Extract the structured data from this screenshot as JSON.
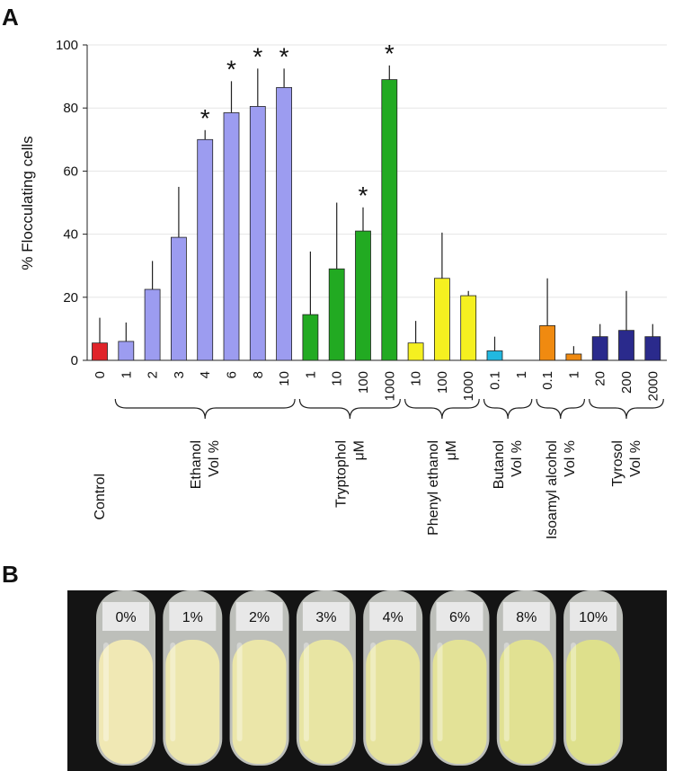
{
  "chart_data": {
    "type": "bar",
    "panel_label": "A",
    "ylabel": "% Flocculating cells",
    "ylim": [
      0,
      100
    ],
    "yticks": [
      0,
      20,
      40,
      60,
      80,
      100
    ],
    "grid": true,
    "groups": [
      {
        "name": "Control",
        "color": "#e0242a",
        "categories": [
          "0"
        ],
        "values": [
          5.5
        ],
        "errors": [
          8
        ],
        "annotations": [
          null
        ]
      },
      {
        "name": "Ethanol",
        "unit": "Vol %",
        "color": "#9c9cf0",
        "categories": [
          "1",
          "2",
          "3",
          "4",
          "6",
          "8",
          "10"
        ],
        "values": [
          6,
          22.5,
          39,
          70,
          78.5,
          80.5,
          86.5
        ],
        "errors": [
          6,
          9,
          16,
          3,
          10,
          12,
          6
        ],
        "annotations": [
          null,
          null,
          null,
          "*",
          "*",
          "*",
          "*"
        ]
      },
      {
        "name": "Tryptophol",
        "unit": "μM",
        "color": "#22aa22",
        "categories": [
          "1",
          "10",
          "100",
          "1000"
        ],
        "values": [
          14.5,
          29,
          41,
          89
        ],
        "errors": [
          20,
          21,
          7.5,
          4.5
        ],
        "annotations": [
          null,
          null,
          "*",
          "*"
        ]
      },
      {
        "name": "Phenyl ethanol",
        "unit": "μM",
        "color": "#f5f020",
        "categories": [
          "10",
          "100",
          "1000"
        ],
        "values": [
          5.5,
          26,
          20.5
        ],
        "errors": [
          7,
          14.5,
          1.5
        ],
        "annotations": [
          null,
          null,
          null
        ]
      },
      {
        "name": "Butanol",
        "unit": "Vol %",
        "color": "#22b8e0",
        "categories": [
          "0.1",
          "1"
        ],
        "values": [
          3,
          0
        ],
        "errors": [
          4.5,
          0
        ],
        "annotations": [
          null,
          null
        ]
      },
      {
        "name": "Isoamyl alcohol",
        "unit": "Vol %",
        "color": "#f08a10",
        "categories": [
          "0.1",
          "1"
        ],
        "values": [
          11,
          2
        ],
        "errors": [
          15,
          2.5
        ],
        "annotations": [
          null,
          null
        ]
      },
      {
        "name": "Tyrosol",
        "unit": "Vol %",
        "color": "#2a2a8c",
        "categories": [
          "20",
          "200",
          "2000"
        ],
        "values": [
          7.5,
          9.5,
          7.5
        ],
        "errors": [
          4,
          12.5,
          4
        ],
        "annotations": [
          null,
          null,
          null
        ]
      }
    ]
  },
  "panel_b": {
    "label": "B",
    "tubes": [
      "0%",
      "1%",
      "2%",
      "3%",
      "4%",
      "6%",
      "8%",
      "10%"
    ]
  }
}
